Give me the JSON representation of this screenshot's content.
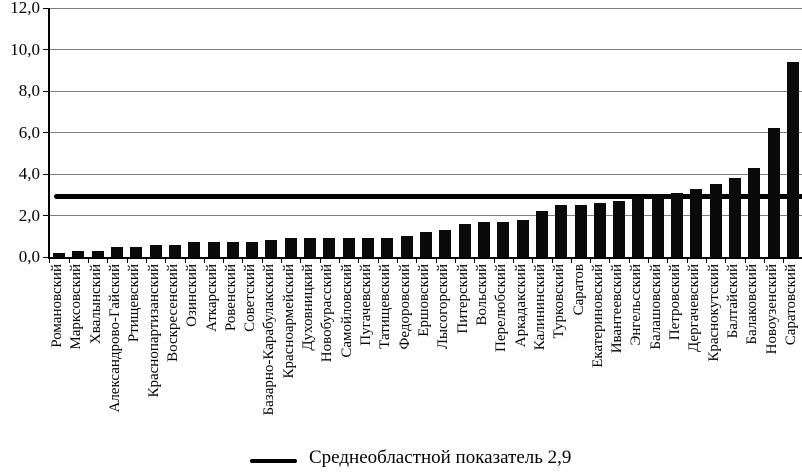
{
  "chart_data": {
    "type": "bar",
    "title": "",
    "xlabel": "",
    "ylabel": "",
    "ylim": [
      0,
      12
    ],
    "grid": true,
    "legend_position": "bottom",
    "bar_color": "#0a0a0a",
    "y_tick_labels": [
      "0,0",
      "2,0",
      "4,0",
      "6,0",
      "8,0",
      "10,0",
      "12,0"
    ],
    "y_tick_values": [
      0,
      2,
      4,
      6,
      8,
      10,
      12
    ],
    "categories": [
      "Романовский",
      "Марксовский",
      "Хвалынский",
      "Александрово-Гайский",
      "Ртищевский",
      "Краснопартизанский",
      "Воскресенский",
      "Озинский",
      "Аткарский",
      "Ровенский",
      "Советский",
      "Базарно-Карабулакский",
      "Красноармейский",
      "Духовницкий",
      "Новобурасский",
      "Самойловский",
      "Пугачевский",
      "Татищевский",
      "Федоровский",
      "Ершовский",
      "Лысогорский",
      "Питерский",
      "Вольский",
      "Перелюбский",
      "Аркадакский",
      "Калининский",
      "Турковский",
      "Саратов",
      "Екатериновский",
      "Ивантеевский",
      "Энгельсский",
      "Балашовский",
      "Петровский",
      "Дергачевский",
      "Краснокутский",
      "Балтайский",
      "Балаковский",
      "Новоузенский",
      "Саратовский"
    ],
    "values": [
      0.2,
      0.3,
      0.3,
      0.5,
      0.5,
      0.6,
      0.6,
      0.7,
      0.7,
      0.7,
      0.7,
      0.8,
      0.9,
      0.9,
      0.9,
      0.9,
      0.9,
      0.9,
      1.0,
      1.2,
      1.3,
      1.6,
      1.7,
      1.7,
      1.8,
      2.2,
      2.5,
      2.5,
      2.6,
      2.7,
      2.9,
      3.0,
      3.1,
      3.3,
      3.5,
      3.8,
      4.3,
      6.2,
      9.4
    ],
    "reference_line": {
      "value": 2.9,
      "label": "Среднеобластной показатель 2,9",
      "color": "#000000"
    }
  }
}
